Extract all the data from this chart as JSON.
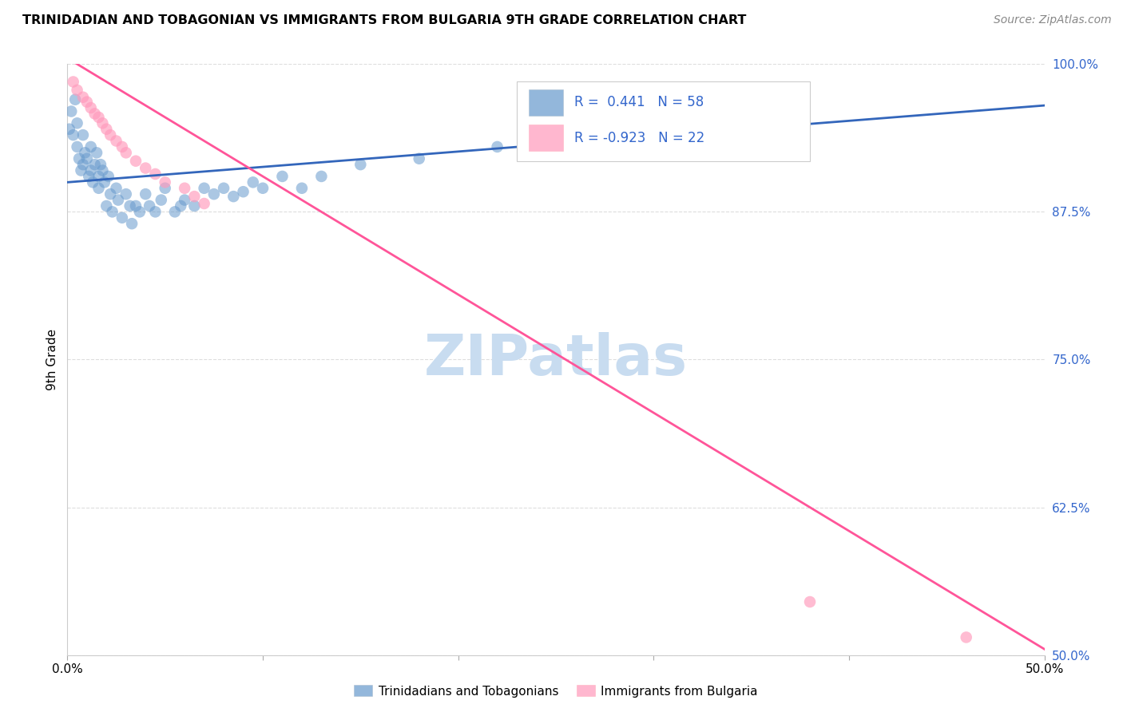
{
  "title": "TRINIDADIAN AND TOBAGONIAN VS IMMIGRANTS FROM BULGARIA 9TH GRADE CORRELATION CHART",
  "source": "Source: ZipAtlas.com",
  "xlabel_blue": "Trinidadians and Tobagonians",
  "xlabel_pink": "Immigrants from Bulgaria",
  "ylabel": "9th Grade",
  "xmin": 0.0,
  "xmax": 0.5,
  "ymin": 0.5,
  "ymax": 1.0,
  "yticks": [
    1.0,
    0.875,
    0.75,
    0.625,
    0.5
  ],
  "ytick_labels": [
    "100.0%",
    "87.5%",
    "75.0%",
    "62.5%",
    "50.0%"
  ],
  "R_blue": 0.441,
  "N_blue": 58,
  "R_pink": -0.923,
  "N_pink": 22,
  "blue_color": "#6699CC",
  "pink_color": "#FF99BB",
  "blue_line_color": "#3366BB",
  "pink_line_color": "#FF5599",
  "watermark": "ZIPatlas",
  "watermark_color": "#C8DCF0",
  "blue_line_x": [
    0.0,
    0.5
  ],
  "blue_line_y": [
    0.9,
    0.965
  ],
  "pink_line_x": [
    0.0,
    0.5
  ],
  "pink_line_y": [
    1.005,
    0.505
  ],
  "blue_points_x": [
    0.001,
    0.002,
    0.003,
    0.004,
    0.005,
    0.005,
    0.006,
    0.007,
    0.008,
    0.008,
    0.009,
    0.01,
    0.011,
    0.012,
    0.012,
    0.013,
    0.014,
    0.015,
    0.016,
    0.016,
    0.017,
    0.018,
    0.019,
    0.02,
    0.021,
    0.022,
    0.023,
    0.025,
    0.026,
    0.028,
    0.03,
    0.032,
    0.033,
    0.035,
    0.037,
    0.04,
    0.042,
    0.045,
    0.048,
    0.05,
    0.055,
    0.058,
    0.06,
    0.065,
    0.07,
    0.075,
    0.08,
    0.085,
    0.09,
    0.095,
    0.1,
    0.11,
    0.12,
    0.13,
    0.15,
    0.18,
    0.22,
    0.3
  ],
  "blue_points_y": [
    0.945,
    0.96,
    0.94,
    0.97,
    0.95,
    0.93,
    0.92,
    0.91,
    0.94,
    0.915,
    0.925,
    0.92,
    0.905,
    0.93,
    0.91,
    0.9,
    0.915,
    0.925,
    0.905,
    0.895,
    0.915,
    0.91,
    0.9,
    0.88,
    0.905,
    0.89,
    0.875,
    0.895,
    0.885,
    0.87,
    0.89,
    0.88,
    0.865,
    0.88,
    0.875,
    0.89,
    0.88,
    0.875,
    0.885,
    0.895,
    0.875,
    0.88,
    0.885,
    0.88,
    0.895,
    0.89,
    0.895,
    0.888,
    0.892,
    0.9,
    0.895,
    0.905,
    0.895,
    0.905,
    0.915,
    0.92,
    0.93,
    0.945
  ],
  "pink_points_x": [
    0.003,
    0.005,
    0.008,
    0.01,
    0.012,
    0.014,
    0.016,
    0.018,
    0.02,
    0.022,
    0.025,
    0.028,
    0.03,
    0.035,
    0.04,
    0.045,
    0.05,
    0.06,
    0.065,
    0.07,
    0.38,
    0.46
  ],
  "pink_points_y": [
    0.985,
    0.978,
    0.972,
    0.968,
    0.963,
    0.958,
    0.955,
    0.95,
    0.945,
    0.94,
    0.935,
    0.93,
    0.925,
    0.918,
    0.912,
    0.907,
    0.9,
    0.895,
    0.888,
    0.882,
    0.545,
    0.515
  ]
}
